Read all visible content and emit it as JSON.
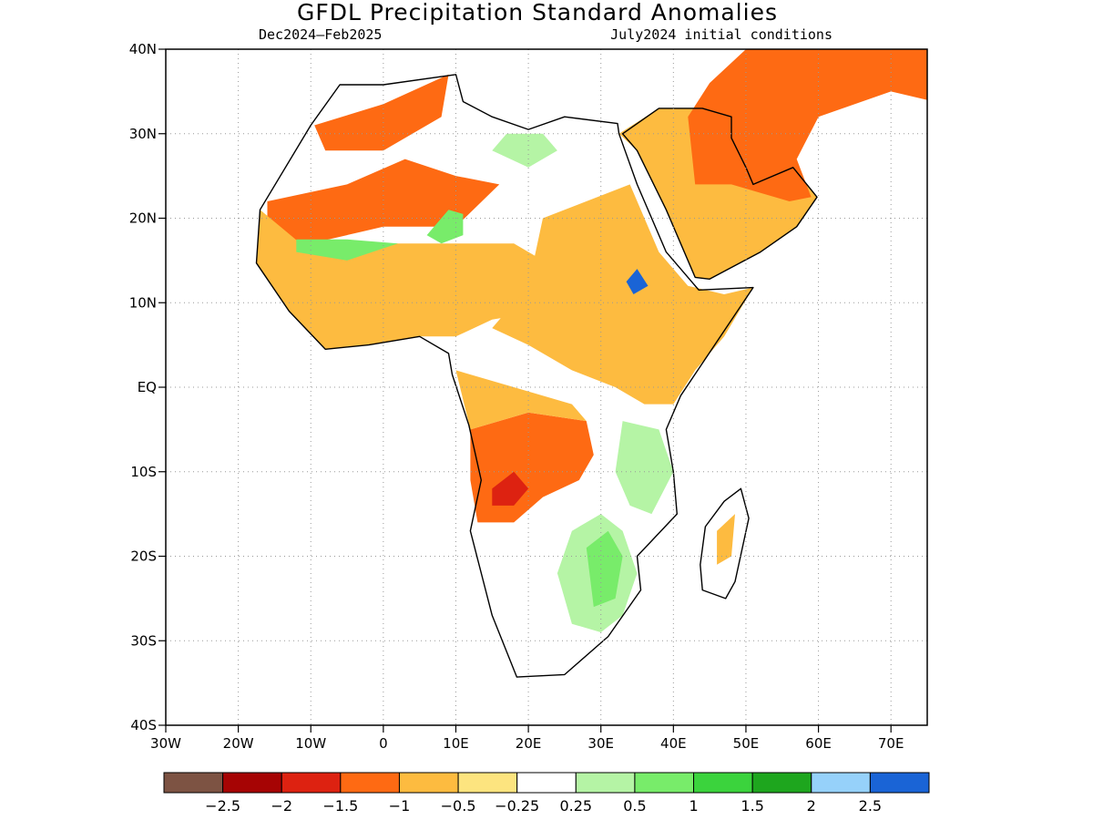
{
  "title": "GFDL Precipitation Standard Anomalies",
  "subtitle_left": "Dec2024–Feb2025",
  "subtitle_right": "July2024 initial conditions",
  "map": {
    "lon_range": [
      -30,
      75
    ],
    "lat_range": [
      -40,
      40
    ],
    "lat_ticks": [
      {
        "value": 40,
        "label": "40N"
      },
      {
        "value": 30,
        "label": "30N"
      },
      {
        "value": 20,
        "label": "20N"
      },
      {
        "value": 10,
        "label": "10N"
      },
      {
        "value": 0,
        "label": "EQ"
      },
      {
        "value": -10,
        "label": "10S"
      },
      {
        "value": -20,
        "label": "20S"
      },
      {
        "value": -30,
        "label": "30S"
      },
      {
        "value": -40,
        "label": "40S"
      }
    ],
    "lon_ticks": [
      {
        "value": -30,
        "label": "30W"
      },
      {
        "value": -20,
        "label": "20W"
      },
      {
        "value": -10,
        "label": "10W"
      },
      {
        "value": 0,
        "label": "0"
      },
      {
        "value": 10,
        "label": "10E"
      },
      {
        "value": 20,
        "label": "20E"
      },
      {
        "value": 30,
        "label": "30E"
      },
      {
        "value": 40,
        "label": "40E"
      },
      {
        "value": 50,
        "label": "50E"
      },
      {
        "value": 60,
        "label": "60E"
      },
      {
        "value": 70,
        "label": "70E"
      }
    ],
    "grid": true,
    "land_outline": [
      [
        -6,
        35.8
      ],
      [
        -10,
        31
      ],
      [
        -17,
        21
      ],
      [
        -17.5,
        14.7
      ],
      [
        -13,
        9
      ],
      [
        -8,
        4.5
      ],
      [
        -2,
        5
      ],
      [
        5,
        6
      ],
      [
        9,
        4
      ],
      [
        9.5,
        1.5
      ],
      [
        11.8,
        -4.5
      ],
      [
        13.5,
        -11
      ],
      [
        12,
        -17
      ],
      [
        15,
        -27
      ],
      [
        18.4,
        -34.3
      ],
      [
        25,
        -34
      ],
      [
        31,
        -29.5
      ],
      [
        35.5,
        -24
      ],
      [
        35,
        -20
      ],
      [
        40.5,
        -15
      ],
      [
        40,
        -10
      ],
      [
        39,
        -5
      ],
      [
        41,
        -1
      ],
      [
        51,
        11.8
      ],
      [
        43.5,
        11.5
      ],
      [
        39,
        16
      ],
      [
        35,
        24
      ],
      [
        32.5,
        30
      ],
      [
        32.3,
        31.2
      ],
      [
        25,
        32
      ],
      [
        20,
        30.5
      ],
      [
        15,
        32
      ],
      [
        11,
        33.8
      ],
      [
        10,
        37
      ],
      [
        0,
        35.8
      ],
      [
        -6,
        35.8
      ]
    ],
    "arabia_outline": [
      [
        33,
        30
      ],
      [
        35,
        28
      ],
      [
        39,
        21
      ],
      [
        43,
        13
      ],
      [
        45,
        12.8
      ],
      [
        52,
        16
      ],
      [
        57,
        19
      ],
      [
        59.8,
        22.5
      ],
      [
        56.5,
        26
      ],
      [
        51,
        24
      ],
      [
        50,
        26
      ],
      [
        48,
        29.5
      ],
      [
        48,
        32
      ],
      [
        44,
        33
      ],
      [
        38,
        33
      ],
      [
        33,
        30
      ]
    ],
    "madagascar_outline": [
      [
        49.3,
        -12
      ],
      [
        50.4,
        -15.5
      ],
      [
        48.5,
        -23
      ],
      [
        47.2,
        -25
      ],
      [
        44,
        -24
      ],
      [
        43.7,
        -21
      ],
      [
        44.4,
        -16.5
      ],
      [
        47,
        -13.5
      ],
      [
        49.3,
        -12
      ]
    ],
    "anomaly_regions": [
      {
        "class": -1,
        "points": [
          [
            -9.5,
            31
          ],
          [
            0,
            33.5
          ],
          [
            9,
            37
          ],
          [
            8,
            32
          ],
          [
            0,
            28
          ],
          [
            -8,
            28
          ]
        ]
      },
      {
        "class": -1,
        "points": [
          [
            -16,
            22
          ],
          [
            -5,
            24
          ],
          [
            3,
            27
          ],
          [
            10,
            25
          ],
          [
            16,
            24
          ],
          [
            10,
            19
          ],
          [
            0,
            19
          ],
          [
            -10,
            17
          ],
          [
            -16,
            17
          ]
        ]
      },
      {
        "class": -0.5,
        "points": [
          [
            -17,
            21
          ],
          [
            -17.5,
            14.7
          ],
          [
            -13,
            9
          ],
          [
            -8,
            4.5
          ],
          [
            -2,
            5
          ],
          [
            5,
            6
          ],
          [
            10,
            6
          ],
          [
            15,
            8
          ],
          [
            22,
            9
          ],
          [
            24,
            14
          ],
          [
            18,
            17
          ],
          [
            10,
            17
          ],
          [
            0,
            17
          ],
          [
            -10,
            16
          ]
        ]
      },
      {
        "class": 1,
        "points": [
          [
            -12,
            16
          ],
          [
            -5,
            15
          ],
          [
            2,
            17
          ],
          [
            -5,
            17.5
          ],
          [
            -12,
            17.5
          ]
        ]
      },
      {
        "class": 1,
        "points": [
          [
            6,
            18
          ],
          [
            9,
            21
          ],
          [
            11,
            20.5
          ],
          [
            11,
            18
          ],
          [
            8,
            17
          ]
        ]
      },
      {
        "class": 0.5,
        "points": [
          [
            15,
            28
          ],
          [
            20,
            26
          ],
          [
            24,
            28
          ],
          [
            22,
            30
          ],
          [
            17,
            30
          ]
        ]
      },
      {
        "class": -0.5,
        "points": [
          [
            22,
            20
          ],
          [
            34,
            24
          ],
          [
            36,
            20
          ],
          [
            38,
            16
          ],
          [
            42,
            12
          ],
          [
            47,
            11
          ],
          [
            51,
            11.8
          ],
          [
            47,
            6
          ],
          [
            43,
            2
          ],
          [
            40,
            -2
          ],
          [
            36,
            -2
          ],
          [
            32,
            0
          ],
          [
            26,
            2
          ],
          [
            20,
            5
          ],
          [
            15,
            7
          ],
          [
            20,
            12
          ]
        ]
      },
      {
        "class": -0.5,
        "points": [
          [
            32.5,
            30
          ],
          [
            35,
            28
          ],
          [
            39,
            21
          ],
          [
            43,
            13
          ],
          [
            45,
            12.8
          ],
          [
            52,
            16
          ],
          [
            57,
            19
          ],
          [
            59.8,
            22.5
          ],
          [
            56.5,
            26
          ],
          [
            51,
            24
          ],
          [
            50,
            26
          ],
          [
            48,
            29.5
          ],
          [
            48,
            32
          ],
          [
            44,
            33
          ],
          [
            38,
            33
          ]
        ]
      },
      {
        "class": -1,
        "points": [
          [
            43,
            24
          ],
          [
            48,
            24
          ],
          [
            56,
            22
          ],
          [
            59,
            22.5
          ],
          [
            57,
            27
          ],
          [
            60,
            32
          ],
          [
            70,
            35
          ],
          [
            75,
            34
          ],
          [
            75,
            40
          ],
          [
            50,
            40
          ],
          [
            45,
            36
          ],
          [
            42,
            32
          ]
        ]
      },
      {
        "class": 1.5,
        "points": [
          [
            33.5,
            12.5
          ],
          [
            35,
            14
          ],
          [
            36.5,
            12
          ],
          [
            34.5,
            11
          ]
        ]
      },
      {
        "class": -1,
        "points": [
          [
            12,
            -5
          ],
          [
            20,
            -3
          ],
          [
            28,
            -4
          ],
          [
            29,
            -8
          ],
          [
            27,
            -11
          ],
          [
            22,
            -13
          ],
          [
            18,
            -16
          ],
          [
            13,
            -16
          ],
          [
            12,
            -11
          ]
        ]
      },
      {
        "class": -1.5,
        "points": [
          [
            15,
            -12
          ],
          [
            18,
            -10
          ],
          [
            20,
            -12
          ],
          [
            18,
            -14
          ],
          [
            15,
            -14
          ]
        ]
      },
      {
        "class": -0.5,
        "points": [
          [
            10,
            2
          ],
          [
            18,
            0
          ],
          [
            26,
            -2
          ],
          [
            28,
            -4
          ],
          [
            20,
            -3
          ],
          [
            12,
            -5
          ]
        ]
      },
      {
        "class": 0.5,
        "points": [
          [
            26,
            -17
          ],
          [
            30,
            -15
          ],
          [
            33,
            -17
          ],
          [
            35,
            -22
          ],
          [
            33,
            -27
          ],
          [
            30,
            -29
          ],
          [
            26,
            -28
          ],
          [
            24,
            -22
          ]
        ]
      },
      {
        "class": 1,
        "points": [
          [
            28,
            -19
          ],
          [
            31,
            -17
          ],
          [
            33,
            -20
          ],
          [
            32,
            -25
          ],
          [
            29,
            -26
          ]
        ]
      },
      {
        "class": 0.5,
        "points": [
          [
            33,
            -4
          ],
          [
            38,
            -5
          ],
          [
            40,
            -10
          ],
          [
            37,
            -15
          ],
          [
            34,
            -14
          ],
          [
            32,
            -10
          ]
        ]
      },
      {
        "class": -0.5,
        "points": [
          [
            46,
            -17
          ],
          [
            48.5,
            -15
          ],
          [
            48,
            -20
          ],
          [
            46,
            -21
          ]
        ]
      }
    ],
    "anomaly_colors": {
      "-2": "#dd2211",
      "-1.5": "#dd2211",
      "-1": "#fe6a13",
      "-0.5": "#fdbb40",
      "0.5": "#b5f4a5",
      "1": "#78ec6a",
      "1.5": "#1a64d6"
    }
  },
  "colorbar": {
    "colors": [
      "#7d5343",
      "#a60404",
      "#dd2211",
      "#fe6a13",
      "#fdbb40",
      "#fde47f",
      "#ffffff",
      "#b5f4a5",
      "#78ec6a",
      "#3bd33d",
      "#1ea61e",
      "#96d1fa",
      "#1a64d6"
    ],
    "labels": [
      "−2.5",
      "−2",
      "−1.5",
      "−1",
      "−0.5",
      "−0.25",
      "0.25",
      "0.5",
      "1",
      "1.5",
      "2",
      "2.5"
    ]
  }
}
